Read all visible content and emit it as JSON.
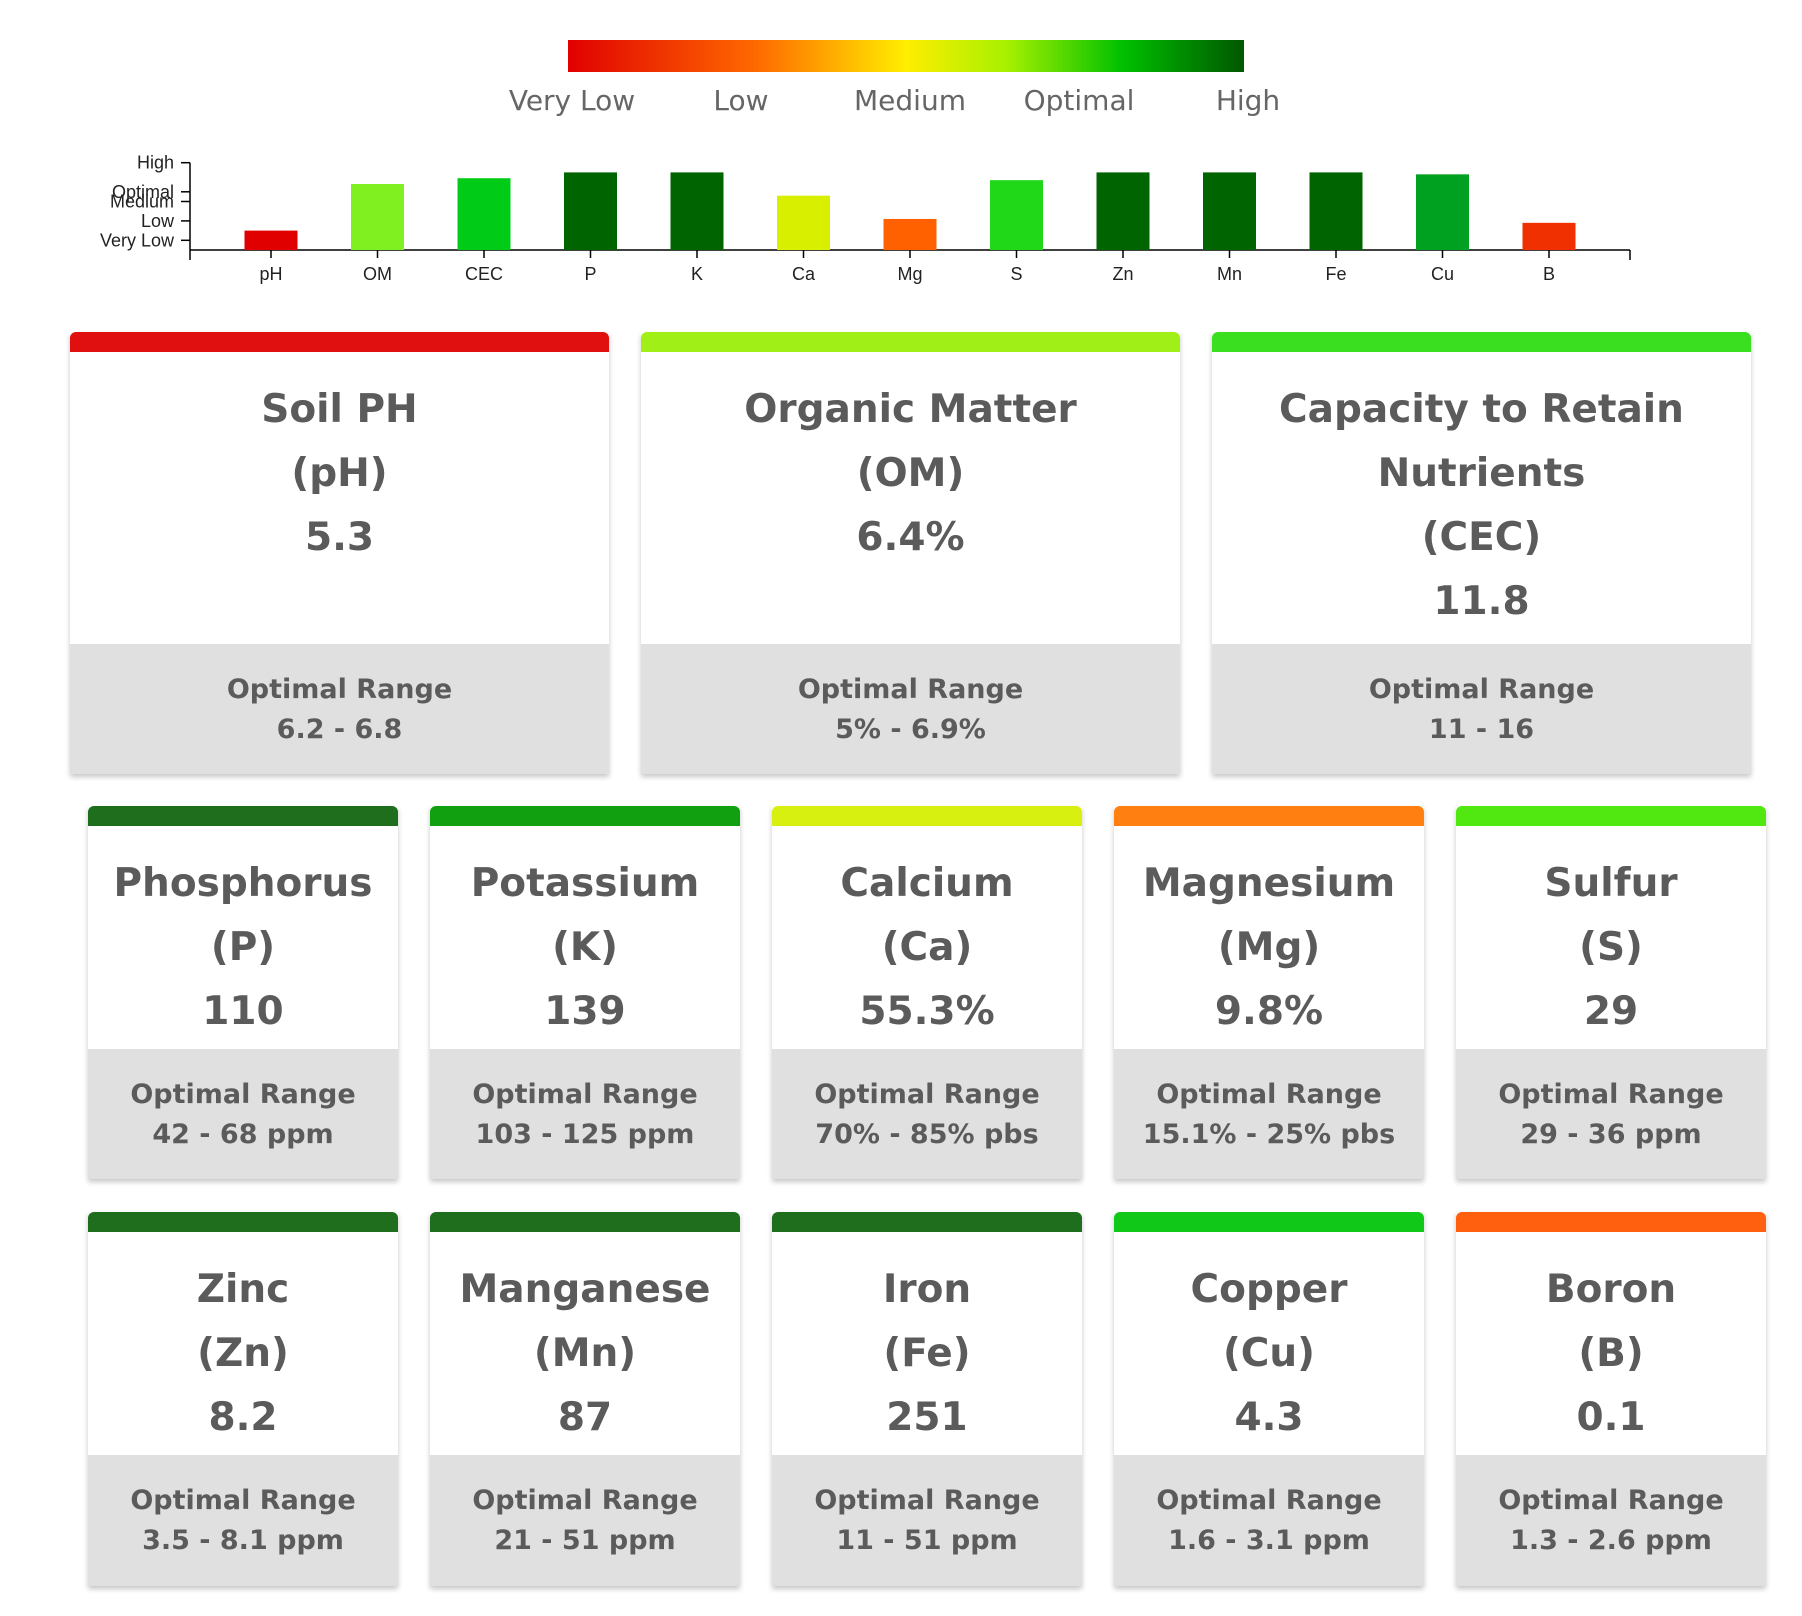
{
  "legend": {
    "labels": [
      "Very Low",
      "Low",
      "Medium",
      "Optimal",
      "High"
    ],
    "colors": [
      "#e00000",
      "#ff6a00",
      "#ffee00",
      "#a6f000",
      "#00c000",
      "#005800"
    ]
  },
  "chart_data": {
    "type": "bar",
    "categories": [
      "pH",
      "OM",
      "CEC",
      "P",
      "K",
      "Ca",
      "Mg",
      "S",
      "Zn",
      "Mn",
      "Fe",
      "Cu",
      "B"
    ],
    "values": [
      1.0,
      3.4,
      3.7,
      4.0,
      4.0,
      2.8,
      1.6,
      3.6,
      4.0,
      4.0,
      4.0,
      3.9,
      1.4
    ],
    "bar_colors": [
      "#e00000",
      "#80f020",
      "#00cc18",
      "#006400",
      "#006400",
      "#d8f000",
      "#ff6000",
      "#20d818",
      "#006400",
      "#006400",
      "#006400",
      "#00a020",
      "#f03000"
    ],
    "y_ticks": [
      "Very Low",
      "Low",
      "Medium",
      "Optimal",
      "High"
    ],
    "y_tick_values": [
      0.5,
      1.5,
      2.5,
      3.0,
      4.5
    ],
    "ylim": [
      0,
      5
    ],
    "title": "",
    "xlabel": "",
    "ylabel": ""
  },
  "cards": [
    {
      "title_lines": [
        "Soil PH",
        "(pH)"
      ],
      "value": "5.3",
      "range_label": "Optimal Range",
      "range": "6.2 - 6.8",
      "color": "#e01010"
    },
    {
      "title_lines": [
        "Organic Matter",
        "(OM)"
      ],
      "value": "6.4%",
      "range_label": "Optimal Range",
      "range": "5% - 6.9%",
      "color": "#a0f018"
    },
    {
      "title_lines": [
        "Capacity to Retain",
        "Nutrients",
        "(CEC)"
      ],
      "value": "11.8",
      "range_label": "Optimal Range",
      "range": "11 - 16",
      "color": "#3ae020"
    },
    {
      "title_lines": [
        "Phosphorus",
        "(P)"
      ],
      "value": "110",
      "range_label": "Optimal Range",
      "range": "42 - 68 ppm",
      "color": "#1e6e1e"
    },
    {
      "title_lines": [
        "Potassium",
        "(K)"
      ],
      "value": "139",
      "range_label": "Optimal Range",
      "range": "103 - 125 ppm",
      "color": "#10a010"
    },
    {
      "title_lines": [
        "Calcium",
        "(Ca)"
      ],
      "value": "55.3%",
      "range_label": "Optimal Range",
      "range": "70% - 85% pbs",
      "color": "#d8f010"
    },
    {
      "title_lines": [
        "Magnesium",
        "(Mg)"
      ],
      "value": "9.8%",
      "range_label": "Optimal Range",
      "range": "15.1% - 25% pbs",
      "color": "#ff8010"
    },
    {
      "title_lines": [
        "Sulfur",
        "(S)"
      ],
      "value": "29",
      "range_label": "Optimal Range",
      "range": "29 - 36 ppm",
      "color": "#50e810"
    },
    {
      "title_lines": [
        "Zinc",
        "(Zn)"
      ],
      "value": "8.2",
      "range_label": "Optimal Range",
      "range": "3.5 - 8.1 ppm",
      "color": "#1e6e1e"
    },
    {
      "title_lines": [
        "Manganese",
        "(Mn)"
      ],
      "value": "87",
      "range_label": "Optimal Range",
      "range": "21 - 51 ppm",
      "color": "#1e6e1e"
    },
    {
      "title_lines": [
        "Iron",
        "(Fe)"
      ],
      "value": "251",
      "range_label": "Optimal Range",
      "range": "11 - 51 ppm",
      "color": "#1e6e1e"
    },
    {
      "title_lines": [
        "Copper",
        "(Cu)"
      ],
      "value": "4.3",
      "range_label": "Optimal Range",
      "range": "1.6 - 3.1 ppm",
      "color": "#10c818"
    },
    {
      "title_lines": [
        "Boron",
        "(B)"
      ],
      "value": "0.1",
      "range_label": "Optimal Range",
      "range": "1.3 - 2.6 ppm",
      "color": "#ff6010"
    }
  ]
}
